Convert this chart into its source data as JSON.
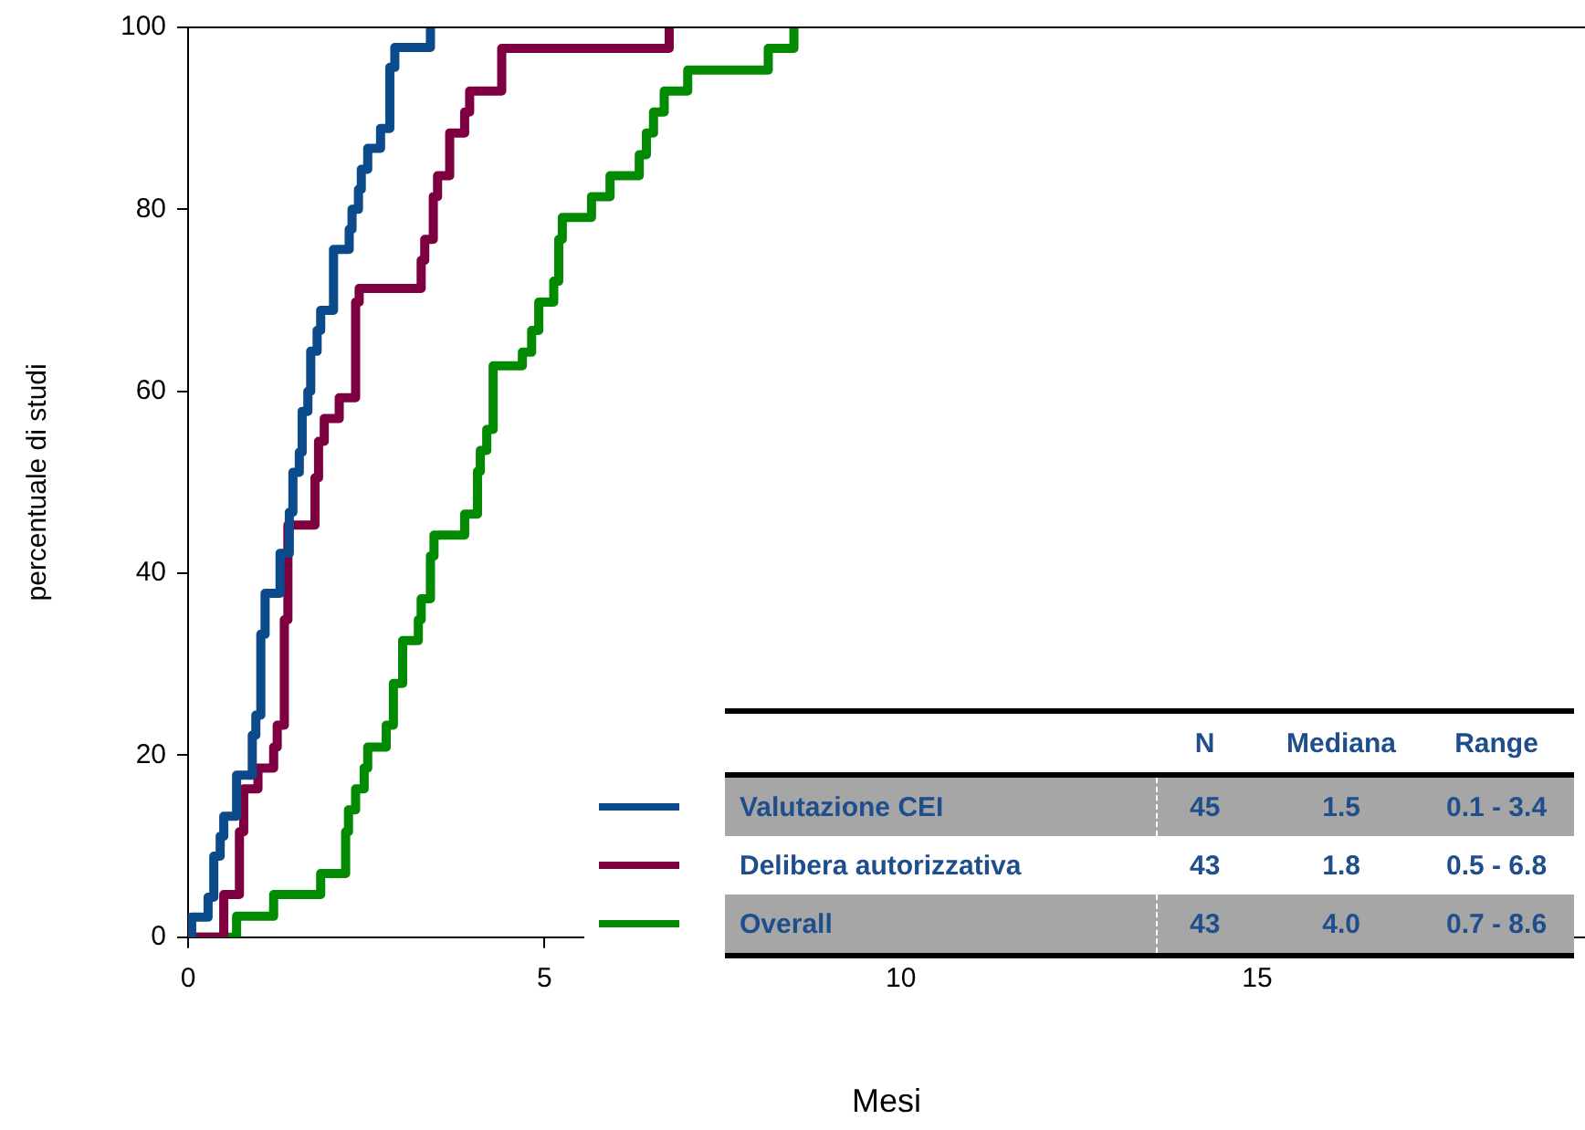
{
  "chart_data": {
    "type": "step",
    "xlabel": "Mesi",
    "ylabel": "percentuale di studi",
    "xlim": [
      0,
      19.6
    ],
    "xticks": [
      0,
      5,
      10,
      15
    ],
    "ylim": [
      0,
      100
    ],
    "yticks": [
      0,
      20,
      40,
      60,
      80,
      100
    ],
    "grid": false,
    "legend": "bottom",
    "line_style": "solid",
    "marker": "none",
    "series": [
      {
        "name": "Valutazione CEI",
        "color": "#0b4a8b",
        "x": [
          0,
          0.05,
          0.28,
          0.36,
          0.45,
          0.5,
          0.68,
          0.9,
          0.95,
          1.02,
          1.08,
          1.29,
          1.42,
          1.47,
          1.56,
          1.6,
          1.68,
          1.72,
          1.81,
          1.86,
          2.04,
          2.26,
          2.3,
          2.39,
          2.43,
          2.52,
          2.7,
          2.83,
          2.9,
          3.4
        ],
        "values": [
          0,
          2.2,
          4.4,
          8.9,
          11.1,
          13.3,
          17.8,
          22.2,
          24.4,
          33.3,
          37.8,
          42.2,
          46.7,
          51.1,
          53.3,
          57.8,
          60,
          64.4,
          66.7,
          68.9,
          75.6,
          77.8,
          80,
          82.2,
          84.4,
          86.7,
          88.9,
          95.6,
          97.8,
          100
        ]
      },
      {
        "name": "Delibera autorizzativa",
        "color": "#7f0041",
        "x": [
          0,
          0.5,
          0.72,
          0.78,
          0.98,
          1.2,
          1.25,
          1.35,
          1.4,
          1.78,
          1.83,
          1.91,
          2.12,
          2.35,
          2.4,
          3.27,
          3.32,
          3.44,
          3.5,
          3.67,
          3.88,
          3.95,
          4.4,
          6.75
        ],
        "values": [
          0,
          4.7,
          11.6,
          16.3,
          18.6,
          20.9,
          23.3,
          34.9,
          45.3,
          50.5,
          54.5,
          57,
          59.3,
          69.8,
          71.3,
          74.4,
          76.7,
          81.4,
          83.7,
          88.4,
          90.7,
          93,
          97.7,
          100
        ]
      },
      {
        "name": "Overall",
        "color": "#038a03",
        "x": [
          0,
          0.68,
          1.2,
          1.86,
          2.21,
          2.25,
          2.35,
          2.47,
          2.52,
          2.78,
          2.88,
          3.01,
          3.23,
          3.27,
          3.4,
          3.45,
          3.88,
          4.06,
          4.1,
          4.19,
          4.28,
          4.69,
          4.82,
          4.92,
          5.13,
          5.2,
          5.25,
          5.66,
          5.92,
          6.33,
          6.43,
          6.53,
          6.68,
          7.01,
          8.14,
          8.5
        ],
        "values": [
          0,
          2.3,
          4.7,
          7,
          11.6,
          14,
          16.3,
          18.6,
          20.9,
          23.3,
          27.9,
          32.6,
          34.9,
          37.2,
          41.9,
          44.2,
          46.5,
          51.2,
          53.5,
          55.8,
          62.8,
          64.3,
          66.7,
          69.8,
          72.1,
          76.7,
          79.1,
          81.4,
          83.7,
          86,
          88.4,
          90.7,
          93,
          95.3,
          97.7,
          100
        ]
      }
    ],
    "annotations": [
      "N",
      "Mediana",
      "Range",
      "45",
      "1.5",
      "0.1 - 3.4",
      "43",
      "1.8",
      "0.5 - 6.8",
      "43",
      "4.0",
      "0.7 - 8.6"
    ]
  }
}
